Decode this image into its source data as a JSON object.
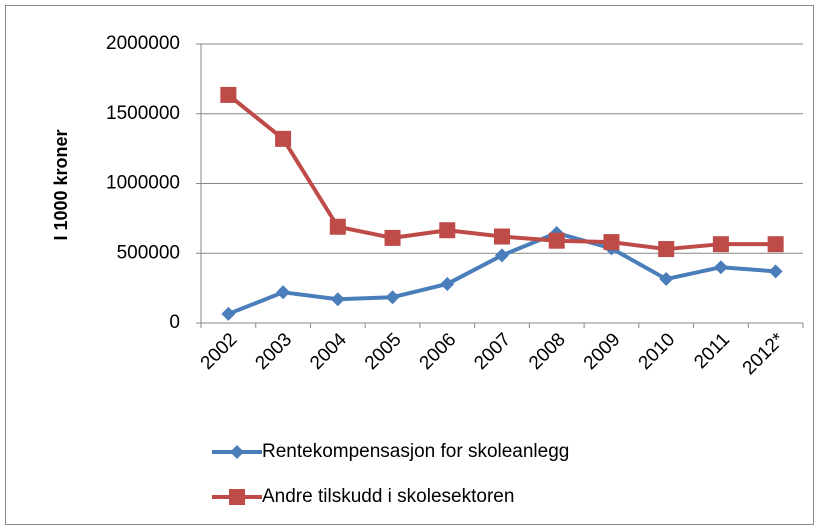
{
  "chart_data": {
    "type": "line",
    "ylabel": "I 1000 kroner",
    "categories": [
      "2002",
      "2003",
      "2004",
      "2005",
      "2006",
      "2007",
      "2008",
      "2009",
      "2010",
      "2011",
      "2012*"
    ],
    "series": [
      {
        "name": "Rentekompensasjon for skoleanlegg",
        "color": "#4a7ebb",
        "marker": "diamond",
        "values": [
          65000,
          220000,
          170000,
          185000,
          280000,
          485000,
          645000,
          535000,
          315000,
          400000,
          370000
        ]
      },
      {
        "name": "Andre tilskudd i skolesektoren",
        "color": "#be4b48",
        "marker": "square",
        "values": [
          1635000,
          1320000,
          690000,
          610000,
          665000,
          620000,
          590000,
          580000,
          530000,
          565000,
          565000
        ]
      }
    ],
    "ylim": [
      0,
      2000000
    ],
    "yticks": [
      0,
      500000,
      1000000,
      1500000,
      2000000
    ],
    "grid": true,
    "legend": "bottom"
  }
}
